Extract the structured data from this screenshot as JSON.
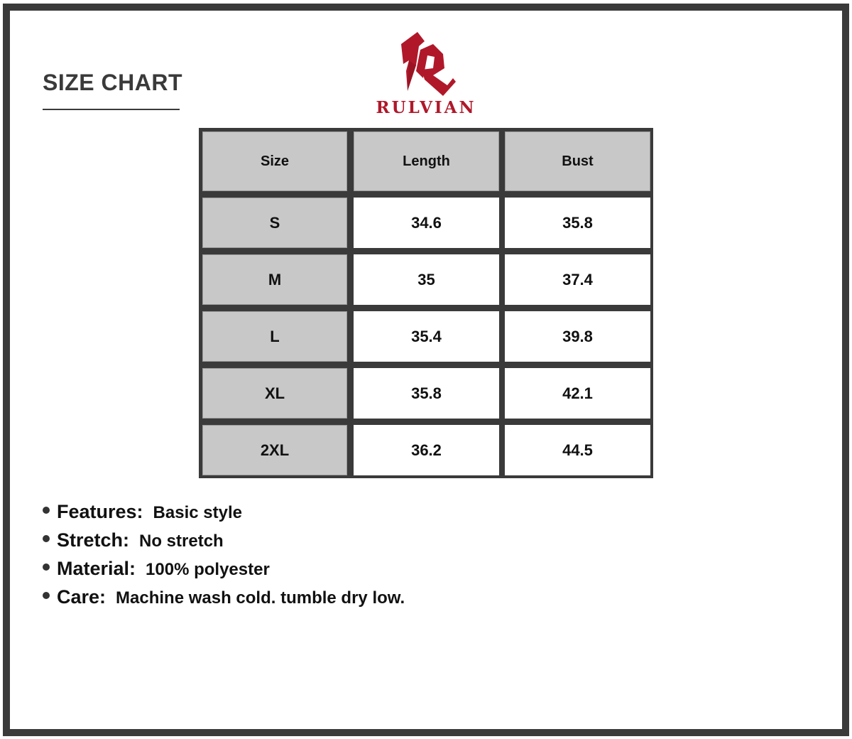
{
  "title": "SIZE CHART",
  "brand": {
    "name": "RULVIAN",
    "color": "#b0182a"
  },
  "table": {
    "headers": [
      "Size",
      "Length",
      "Bust"
    ],
    "rows": [
      [
        "S",
        "34.6",
        "35.8"
      ],
      [
        "M",
        "35",
        "37.4"
      ],
      [
        "L",
        "35.4",
        "39.8"
      ],
      [
        "XL",
        "35.8",
        "42.1"
      ],
      [
        "2XL",
        "36.2",
        "44.5"
      ]
    ]
  },
  "notes": [
    {
      "label": "Features:",
      "value": "Basic style"
    },
    {
      "label": "Stretch:",
      "value": "No stretch"
    },
    {
      "label": "Material:",
      "value": "100% polyester"
    },
    {
      "label": "Care:",
      "value": "Machine wash cold. tumble dry low."
    }
  ]
}
